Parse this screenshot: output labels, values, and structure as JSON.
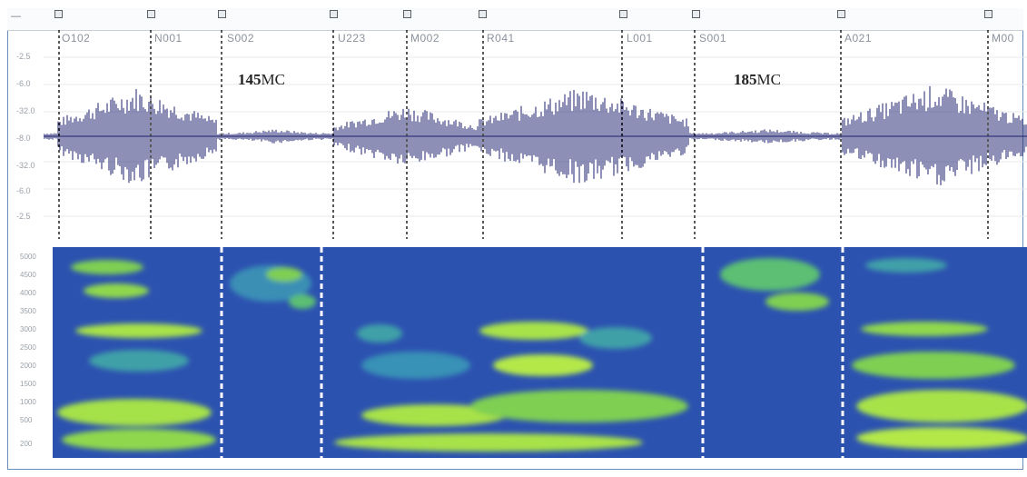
{
  "segments": [
    {
      "label": "O102"
    },
    {
      "label": "N001"
    },
    {
      "label": "S002"
    },
    {
      "label": "U223"
    },
    {
      "label": "M002"
    },
    {
      "label": "R041"
    },
    {
      "label": "L001"
    },
    {
      "label": "S001"
    },
    {
      "label": "A021"
    },
    {
      "label": "M00"
    }
  ],
  "annotations": [
    {
      "prefix": "145",
      "suffix": "MC"
    },
    {
      "prefix": "185",
      "suffix": "MC"
    }
  ],
  "waveform_axis": [
    "-2.5",
    "-6.0",
    "-32.0",
    "-8.0",
    "-32.0",
    "-6.0",
    "-2.5"
  ],
  "spectrogram_axis": [
    "5000",
    "4500",
    "4000",
    "3500",
    "3000",
    "2500",
    "2000",
    "1500",
    "1000",
    "500",
    "200"
  ],
  "colors": {
    "waveform": "#1b1f6e",
    "spectrogram_bg": "#2c52b0",
    "spectrogram_hot": "#9be04a",
    "marker_line": "#222222",
    "boundary_line": "#ffffff",
    "frame": "#6a8cb8"
  }
}
